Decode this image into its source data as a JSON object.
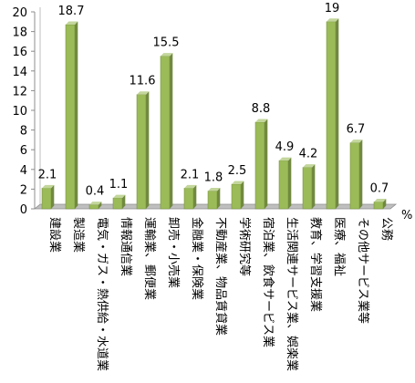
{
  "chart_data": {
    "type": "bar",
    "categories": [
      "建設業",
      "製造業",
      "電気・ガス・熱供給・水道業",
      "情報通信業",
      "運輸業、郵便業",
      "卸売・小売業",
      "金融業・保険業",
      "不動産業、物品賃貸業",
      "学術研究等",
      "宿泊業、飲食サービス業",
      "生活関連サービス業、娯楽業",
      "教育、学習支援業",
      "医療、福祉",
      "その他サービス業等",
      "公務"
    ],
    "values": [
      2.1,
      18.7,
      0.4,
      1.1,
      11.6,
      15.5,
      2.1,
      1.8,
      2.5,
      8.8,
      4.9,
      4.2,
      19,
      6.7,
      0.7
    ],
    "data_labels": [
      "2.1",
      "18.7",
      "0.4",
      "1.1",
      "11.6",
      "15.5",
      "2.1",
      "1.8",
      "2.5",
      "8.8",
      "4.9",
      "4.2",
      "19",
      "6.7",
      "0.7"
    ],
    "ylim": [
      0,
      20
    ],
    "yticks": [
      0,
      2,
      4,
      6,
      8,
      10,
      12,
      14,
      16,
      18,
      20
    ],
    "unit": "%",
    "grid": false,
    "colors": {
      "bar_front": "#9bbb59",
      "bar_side": "#71893f",
      "bar_top": "#c3d69b",
      "wall": "#d9d9d9",
      "floor": "#bfbfbf"
    }
  }
}
